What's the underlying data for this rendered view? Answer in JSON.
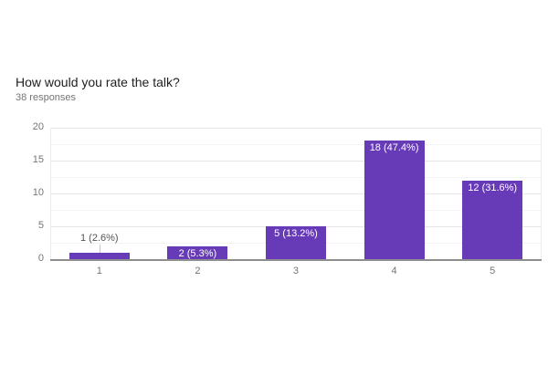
{
  "header": {
    "title": "How would you rate the talk?",
    "responses": "38 responses"
  },
  "chart_data": {
    "type": "bar",
    "title": "How would you rate the talk?",
    "subtitle": "38 responses",
    "total_responses": 38,
    "categories": [
      "1",
      "2",
      "3",
      "4",
      "5"
    ],
    "values": [
      1,
      2,
      5,
      18,
      12
    ],
    "percentages": [
      2.6,
      5.3,
      13.2,
      47.4,
      31.6
    ],
    "labels": [
      "1 (2.6%)",
      "2 (5.3%)",
      "5 (13.2%)",
      "18 (47.4%)",
      "12 (31.6%)"
    ],
    "ylim": [
      0,
      20
    ],
    "yticks": [
      0,
      5,
      10,
      15,
      20
    ],
    "ytick_step": 5,
    "grid_step": 2.5,
    "grid": true,
    "legend": "none",
    "bar_color": "#673ab7",
    "inside_label_color": "#ffffff",
    "outside_label_color": "#545454",
    "axis_label_color": "#757575",
    "baseline_color": "#8f8f8f"
  }
}
